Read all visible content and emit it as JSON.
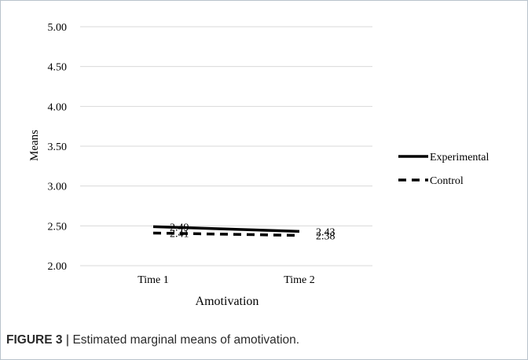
{
  "chart_data": {
    "type": "line",
    "categories": [
      "Time 1",
      "Time 2"
    ],
    "series": [
      {
        "name": "Experimental",
        "values": [
          2.49,
          2.43
        ],
        "value_labels": [
          "2.49",
          "2.43"
        ],
        "style": "solid"
      },
      {
        "name": "Control",
        "values": [
          2.41,
          2.38
        ],
        "value_labels": [
          "2.41",
          "2.38"
        ],
        "style": "dashed"
      }
    ],
    "xlabel": "Amotivation",
    "ylabel": "Means",
    "ylim": [
      2.0,
      5.0
    ],
    "yticks": [
      2.0,
      2.5,
      3.0,
      3.5,
      4.0,
      4.5,
      5.0
    ],
    "ytick_labels": [
      "2.00",
      "2.50",
      "3.00",
      "3.50",
      "4.00",
      "4.50",
      "5.00"
    ],
    "grid": true,
    "legend_position": "right",
    "colors": {
      "line": "#000000",
      "grid": "#d9d9d9"
    }
  },
  "caption": {
    "label": "FIGURE 3",
    "separator": "|",
    "text": "Estimated marginal means of amotivation."
  }
}
